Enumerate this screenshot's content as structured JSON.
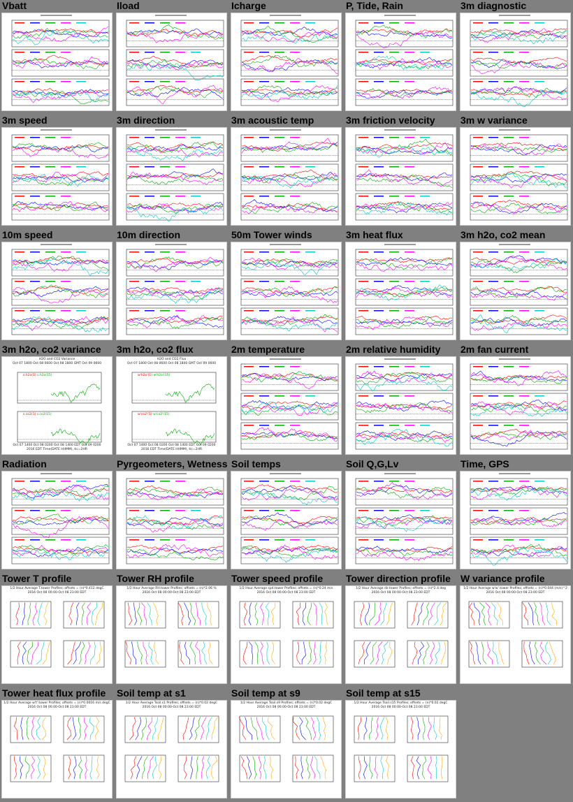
{
  "rows": [
    [
      "Vbatt",
      "Iload",
      "Icharge",
      "P, Tide, Rain",
      "3m diagnostic"
    ],
    [
      "3m speed",
      "3m direction",
      "3m acoustic temp",
      "3m friction velocity",
      "3m w variance"
    ],
    [
      "10m speed",
      "10m direction",
      "50m Tower winds",
      "3m heat flux",
      "3m h2o, co2 mean"
    ],
    [
      "3m h2o, co2 variance",
      "3m h2o, co2 flux",
      "2m temperature",
      "2m relative humidity",
      "2m fan current"
    ],
    [
      "Radiation",
      "Pyrgeometers, Wetness",
      "Soil temps",
      "Soil Q,G,Lv",
      "Time, GPS"
    ],
    [
      "Tower T profile",
      "Tower RH profile",
      "Tower speed profile",
      "Tower direction profile",
      "W variance profile"
    ],
    [
      "Tower heat flux profile",
      "Soil temp at s1",
      "Soil temp at s9",
      "Soil temp at s15"
    ]
  ],
  "profile_headers": {
    "Tower T profile": [
      "1/2 Hour Average T.tower Profiles; offsets = (n)*0.412 degC",
      "2016 Oct 08 00:00-Oct 08 23:00 EDT"
    ],
    "Tower RH profile": [
      "1/2 Hour Average RH.tower Profiles; offsets = (n)*2.06 %",
      "2016 Oct 08 00:00-Oct 08 23:00 EDT"
    ],
    "Tower speed profile": [
      "1/2 Hour Average spd.tower Profiles; offsets = (n)*0.24 m/s",
      "2016 Oct 08 00:00-Oct 08 23:00 EDT"
    ],
    "Tower direction profile": [
      "1/2 Hour Average dir.tower Profiles; offsets = (n)*2.4 deg",
      "2016 Oct 08 00:00-Oct 08 23:00 EDT"
    ],
    "W variance profile": [
      "1/2 Hour Average w'w'.tower Profiles; offsets = (n)*0.044 (m/s)^2",
      "2016 Oct 08 00:00-Oct 08 23:00 EDT"
    ],
    "Tower heat flux profile": [
      "1/2 Hour Average w't'.tower Profiles; offsets = (n)*0.0016 m/s degC",
      "2016 Oct 08 00:00-Oct 08 23:00 EDT"
    ],
    "Soil temp at s1": [
      "1/2 Hour Average Tsoil.s1 Profiles; offsets = (n)*0.02 degC",
      "2016 Oct 08 00:00-Oct 08 23:00 EDT"
    ],
    "Soil temp at s9": [
      "1/2 Hour Average Tsoil.s9 Profiles; offsets = (n)*0.02 degC",
      "2016 Oct 08 00:00-Oct 08 23:00 EDT"
    ],
    "Soil temp at s15": [
      "1/2 Hour Average Tsoil.s15 Profiles; offsets = (n)*0.02 degC",
      "2016 Oct 08 00:00-Oct 08 23:00 EDT"
    ]
  },
  "variance_panel": {
    "title": "H2O and CO2 Variance",
    "top_axis": [
      "Oct 07 1800",
      "Oct 08 0600",
      "Oct 08 1800 GMT",
      "Oct 09 0600"
    ],
    "bottom_axis": [
      "Oct 07 1400",
      "Oct 08 0200",
      "Oct 08 1400 EDT",
      "Oct 09 0200"
    ],
    "year": "2016 EDT",
    "xlabel": "Time(DATE HHMM), tic=2HR",
    "legend": [
      "s.h2o(1)",
      "s.h2o(15)"
    ],
    "legend2": [
      "s.co2(1)",
      "s.co2(15)"
    ]
  },
  "flux_panel": {
    "title": "H2O and CO2 Flux",
    "top_axis": [
      "Oct 07 1800",
      "Oct 08 0600",
      "Oct 08 1800 GMT",
      "Oct 09 0600"
    ],
    "bottom_axis": [
      "Oct 07 1400",
      "Oct 08 0200",
      "Oct 08 1400 EDT",
      "Oct 09 0200"
    ],
    "year": "2016 EDT",
    "xlabel": "Time(DATE HHMM), tic=2HR",
    "legend": [
      "w'h2o'(1)",
      "w'h2o'(15)"
    ],
    "legend2": [
      "w'co2'(1)",
      "w'co2'(15)"
    ]
  },
  "colors": {
    "background": "#808080",
    "series": [
      "#ff0000",
      "#0000ff",
      "#00aa00",
      "#ff00ff",
      "#00c8c8",
      "#ffaa00",
      "#8800cc",
      "#888800"
    ]
  }
}
